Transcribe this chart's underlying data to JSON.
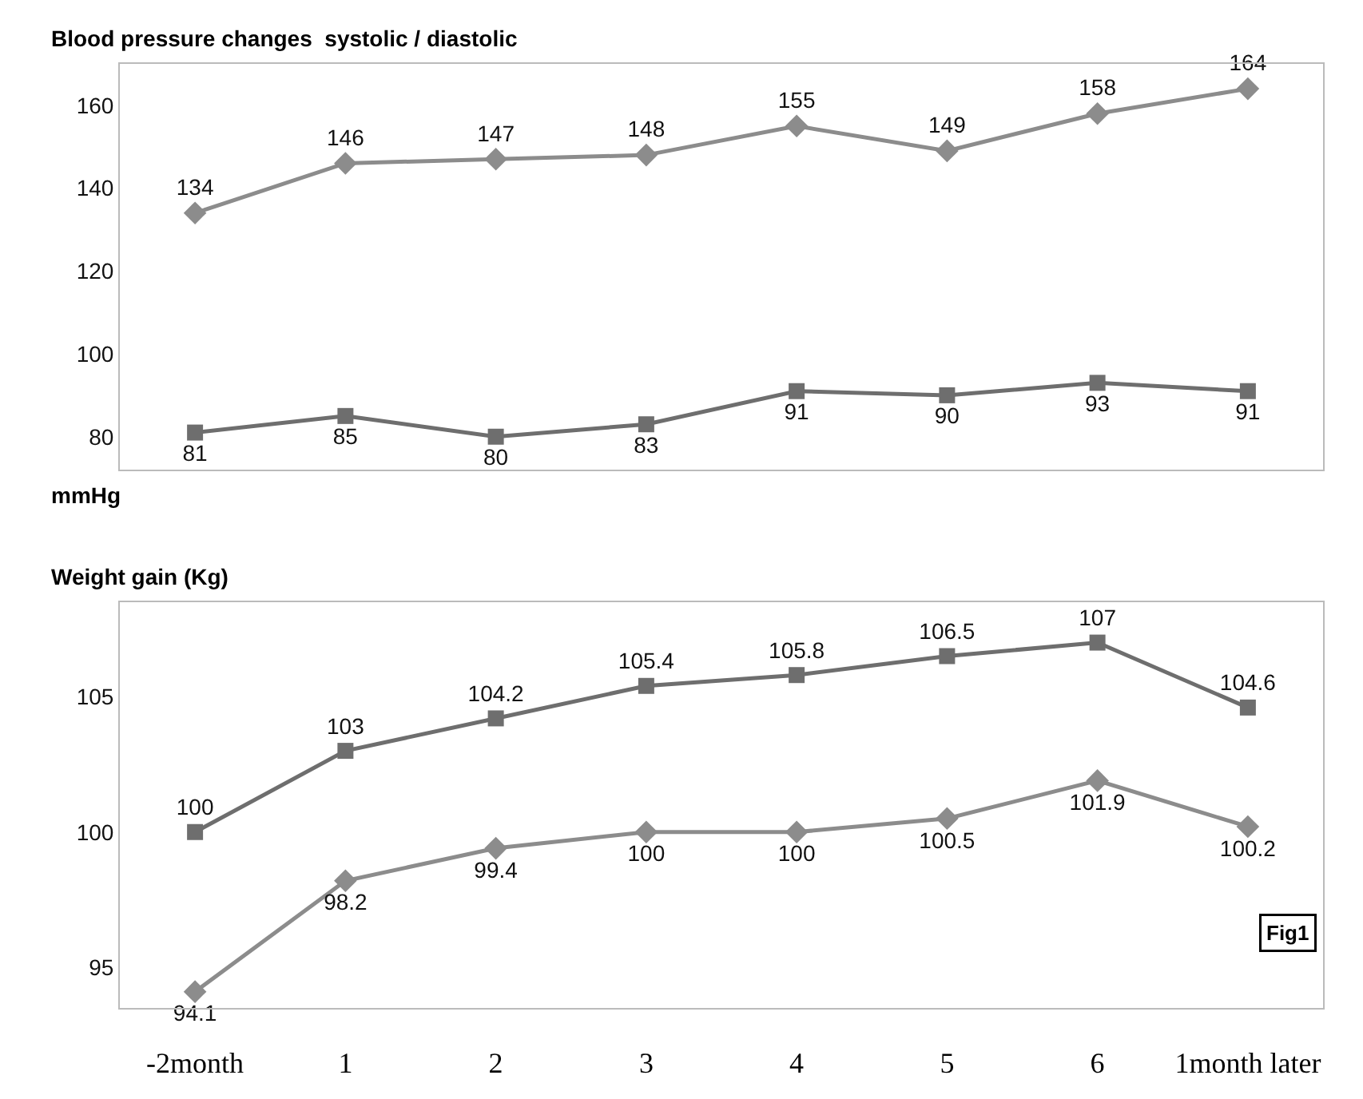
{
  "chart_data": [
    {
      "type": "line",
      "title": "Blood pressure changes  systolic / diastolic",
      "categories": [
        "-2month",
        "1",
        "2",
        "3",
        "4",
        "5",
        "6",
        "1month later"
      ],
      "series": [
        {
          "color": "#8c8c8c",
          "marker": "diamond",
          "values": [
            134,
            146,
            147,
            148,
            155,
            149,
            158,
            164
          ]
        },
        {
          "color": "#6e6e6e",
          "marker": "square",
          "values": [
            81,
            85,
            80,
            83,
            91,
            90,
            93,
            91
          ]
        }
      ],
      "ylim": [
        72,
        170
      ],
      "yticks": [
        80,
        100,
        120,
        140,
        160
      ],
      "grid": false,
      "data_labels": true,
      "tick_labels": "y",
      "annotations": [
        "mmHg"
      ]
    },
    {
      "type": "line",
      "title": "Weight gain (Kg)",
      "categories": [
        "-2month",
        "1",
        "2",
        "3",
        "4",
        "5",
        "6",
        "1month later"
      ],
      "series": [
        {
          "color": "#6e6e6e",
          "marker": "square",
          "values": [
            100,
            103,
            104.2,
            105.4,
            105.8,
            106.5,
            107,
            104.6
          ]
        },
        {
          "color": "#8c8c8c",
          "marker": "diamond",
          "values": [
            94.1,
            98.2,
            99.4,
            100,
            100,
            100.5,
            101.9,
            100.2
          ]
        }
      ],
      "ylim": [
        93.5,
        108.5
      ],
      "yticks": [
        95,
        100,
        105
      ],
      "grid": false,
      "data_labels": true,
      "annotations": [
        "Fig1"
      ]
    }
  ]
}
